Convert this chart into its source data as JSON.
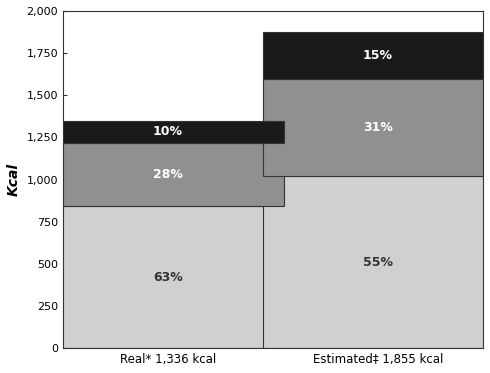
{
  "categories": [
    "Real* 1,336 kcal",
    "Estimated‡ 1,855 kcal"
  ],
  "total_values": [
    1336,
    1855
  ],
  "segments": [
    {
      "label": "bottom",
      "pcts": [
        63,
        55
      ],
      "color": "#d0d0d0",
      "text_color": "#333333"
    },
    {
      "label": "middle",
      "pcts": [
        28,
        31
      ],
      "color": "#909090",
      "text_color": "#ffffff"
    },
    {
      "label": "top",
      "pcts": [
        10,
        15
      ],
      "color": "#1a1a1a",
      "text_color": "#ffffff"
    }
  ],
  "ylabel": "Kcal",
  "ylim": [
    0,
    2000
  ],
  "yticks": [
    0,
    250,
    500,
    750,
    1000,
    1250,
    1500,
    1750,
    2000
  ],
  "ytick_labels": [
    "0",
    "250",
    "500",
    "750",
    "1,000",
    "1,250",
    "1,500",
    "1,750",
    "2,000"
  ],
  "bar_width": 0.55,
  "bar_positions": [
    0.25,
    0.75
  ],
  "x_lim": [
    0.0,
    1.0
  ],
  "figsize": [
    4.9,
    3.73
  ],
  "dpi": 100,
  "background_color": "#ffffff",
  "label_fontsize": 8.5,
  "pct_fontsize": 9,
  "ylabel_fontsize": 10,
  "spine_color": "#333333",
  "edge_color": "#333333"
}
